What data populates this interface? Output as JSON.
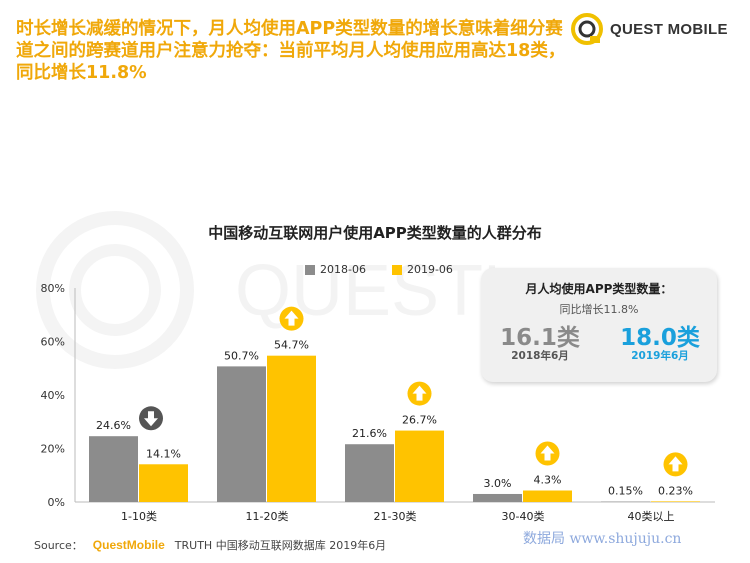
{
  "headline": "时长增长减缓的情况下，月人均使用APP类型数量的增长意味着细分赛道之间的跨赛道用户注意力抢夺：当前平均月人均使用应用高达18类，同比增长11.8%",
  "logo": {
    "text": "QUEST MOBILE"
  },
  "watermark_text": "QUESTM",
  "colors": {
    "series_2018": "#8c8c8c",
    "series_2019": "#ffc300",
    "accent_blue": "#1aa0dc",
    "orange": "#f0a80a"
  },
  "callout": {
    "title": "月人均使用APP类型数量：",
    "subtitle": "同比增长11.8%",
    "value_2018": "16.1类",
    "date_2018": "2018年6月",
    "value_2019": "18.0类",
    "date_2019": "2019年6月"
  },
  "source": {
    "label": "Source：",
    "brand": "QuestMobile",
    "rest": "TRUTH 中国移动互联网数据库 2019年6月"
  },
  "site_mark": "数据局 www.shujuju.cn",
  "chart_data": {
    "type": "bar",
    "title": "中国移动互联网用户使用APP类型数量的人群分布",
    "categories": [
      "1-10类",
      "11-20类",
      "21-30类",
      "30-40类",
      "40类以上"
    ],
    "series": [
      {
        "name": "2018-06",
        "values": [
          24.6,
          50.7,
          21.6,
          3.0,
          0.15
        ],
        "labels": [
          "24.6%",
          "50.7%",
          "21.6%",
          "3.0%",
          "0.15%"
        ]
      },
      {
        "name": "2019-06",
        "values": [
          14.1,
          54.7,
          26.7,
          4.3,
          0.23
        ],
        "labels": [
          "14.1%",
          "54.7%",
          "26.7%",
          "4.3%",
          "0.23%"
        ]
      }
    ],
    "trend_icons": [
      "down",
      "up",
      "up",
      "up",
      "up"
    ],
    "yticks": [
      "0%",
      "20%",
      "40%",
      "60%",
      "80%"
    ],
    "ylim": [
      0,
      80
    ],
    "grid": false,
    "legend_position": "top-center"
  }
}
